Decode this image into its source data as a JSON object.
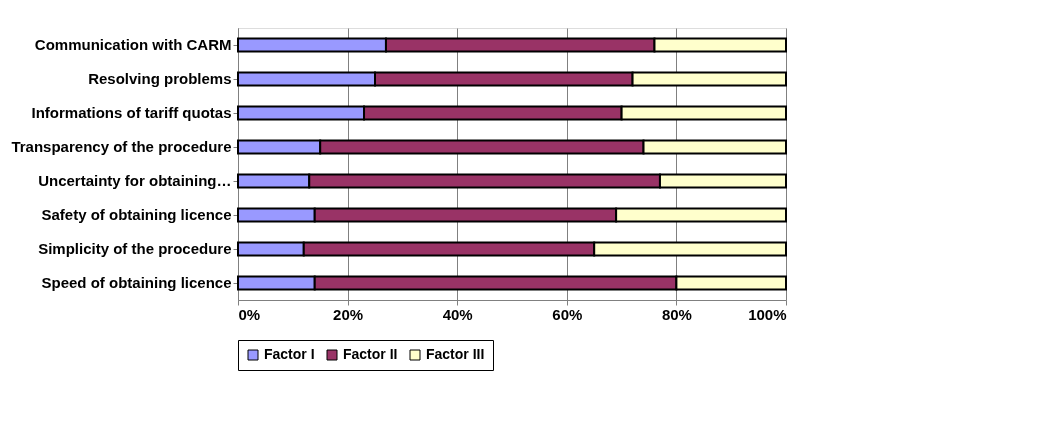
{
  "chart_data": {
    "type": "bar",
    "orientation": "horizontal",
    "stacked": true,
    "categories": [
      "Communication with CARM",
      "Resolving problems",
      "Informations of tariff quotas",
      "Transparency of the procedure",
      "Uncertainty for obtaining…",
      "Safety of obtaining licence",
      "Simplicity of the procedure",
      "Speed of obtaining licence"
    ],
    "series": [
      {
        "name": "Factor I",
        "color": "#9999ff",
        "values": [
          27,
          25,
          23,
          15,
          13,
          14,
          12,
          14
        ]
      },
      {
        "name": "Factor II",
        "color": "#993366",
        "values": [
          49,
          47,
          47,
          59,
          64,
          55,
          53,
          66
        ]
      },
      {
        "name": "Factor III",
        "color": "#ffffcc",
        "values": [
          24,
          28,
          30,
          26,
          23,
          31,
          35,
          20
        ]
      }
    ],
    "xlim": [
      0,
      100
    ],
    "xticks": [
      {
        "value": 0,
        "label": "0%"
      },
      {
        "value": 20,
        "label": "20%"
      },
      {
        "value": 40,
        "label": "40%"
      },
      {
        "value": 60,
        "label": "60%"
      },
      {
        "value": 80,
        "label": "80%"
      },
      {
        "value": 100,
        "label": "100%"
      }
    ],
    "grid": "x",
    "legend": "bottom"
  }
}
